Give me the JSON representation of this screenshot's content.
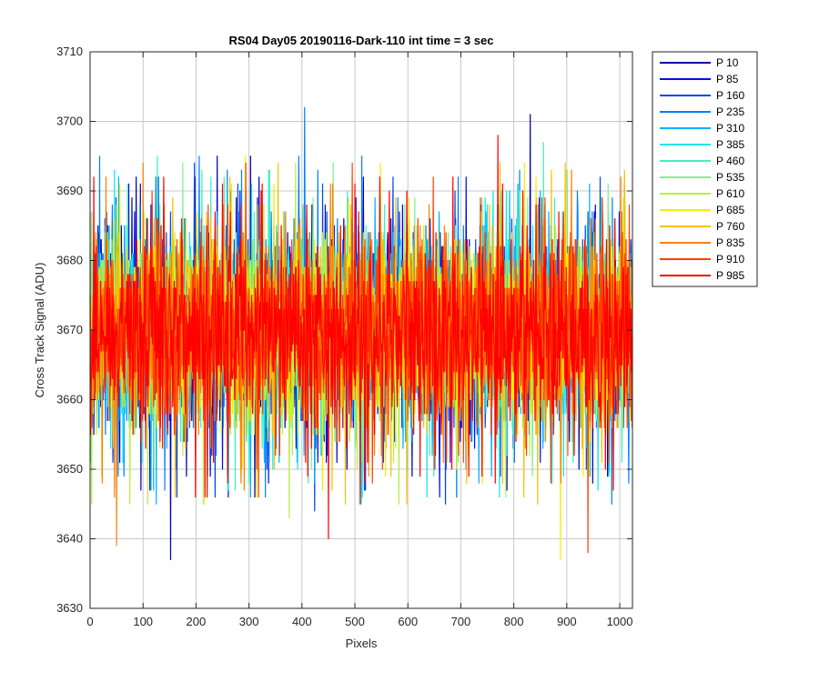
{
  "chart_data": {
    "type": "line",
    "title": "RS04 Day05 20190116-Dark-110 int time = 3 sec",
    "xlabel": "Pixels",
    "ylabel": "Cross Track Signal (ADU)",
    "xlim": [
      0,
      1024
    ],
    "ylim": [
      3630,
      3710
    ],
    "xticks": [
      "0",
      "100",
      "200",
      "300",
      "400",
      "500",
      "600",
      "700",
      "800",
      "900",
      "1000"
    ],
    "yticks": [
      "3630",
      "3640",
      "3650",
      "3660",
      "3670",
      "3680",
      "3690",
      "3700",
      "3710"
    ],
    "grid": true,
    "legend_position": "outside-top-right",
    "noise": {
      "mean": 3670,
      "typical_range": [
        3650,
        3690
      ],
      "pixel_count": 1024
    },
    "series": [
      {
        "name": "P 10",
        "color": "#0000b0"
      },
      {
        "name": "P 85",
        "color": "#0010e0"
      },
      {
        "name": "P 160",
        "color": "#0048e8"
      },
      {
        "name": "P 235",
        "color": "#0080ff"
      },
      {
        "name": "P 310",
        "color": "#00b0ff"
      },
      {
        "name": "P 385",
        "color": "#10e8f0"
      },
      {
        "name": "P 460",
        "color": "#40f0c0"
      },
      {
        "name": "P 535",
        "color": "#80f090"
      },
      {
        "name": "P 610",
        "color": "#b8f040"
      },
      {
        "name": "P 685",
        "color": "#f0f000"
      },
      {
        "name": "P 760",
        "color": "#f8c000"
      },
      {
        "name": "P 835",
        "color": "#ff8000"
      },
      {
        "name": "P 910",
        "color": "#ff4000"
      },
      {
        "name": "P 985",
        "color": "#ff0000"
      }
    ],
    "annotated_extremes": [
      {
        "series": "P 235",
        "x": 405,
        "y": 3702
      },
      {
        "series": "P 10",
        "x": 152,
        "y": 3637
      },
      {
        "series": "P 835",
        "x": 50,
        "y": 3639
      },
      {
        "series": "P 985",
        "x": 770,
        "y": 3698
      },
      {
        "series": "P 910",
        "x": 940,
        "y": 3638
      },
      {
        "series": "P 685",
        "x": 888,
        "y": 3637
      },
      {
        "series": "P 985",
        "x": 450,
        "y": 3640
      }
    ]
  }
}
